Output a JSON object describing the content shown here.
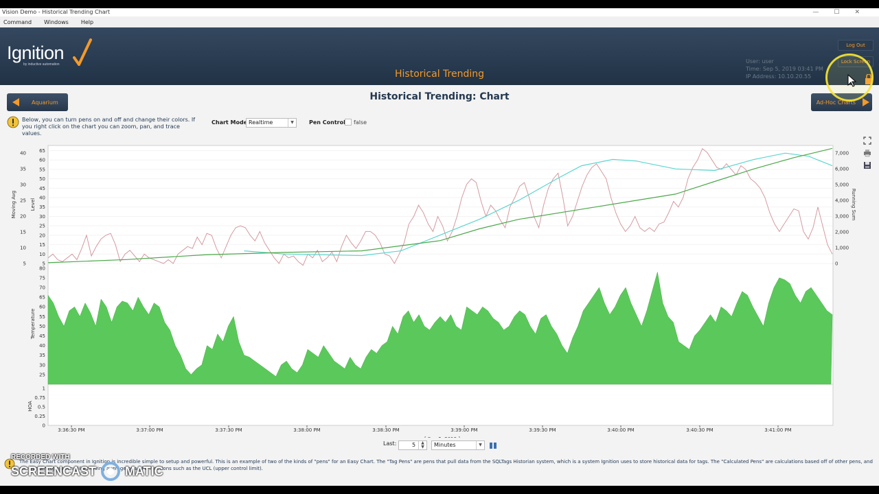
{
  "window": {
    "title": "Vision Demo - Historical Trending Chart",
    "min": "—",
    "max": "☐",
    "close": "✕"
  },
  "menu": [
    "Command",
    "Windows",
    "Help"
  ],
  "header": {
    "logo_text": "Ignition",
    "logo_sub": "by inductive automation",
    "title": "Historical Trending",
    "user_line": "User:  user",
    "time_line": "Time:  Sep 5, 2019 03:41 PM",
    "ip_line": "IP Address:  10.10.20.55",
    "logout": "Log Out",
    "lock": "Lock Screen"
  },
  "page": {
    "title": "Historical Trending: Chart",
    "prev_button": "Aquarium",
    "next_button": "Ad-Hoc Charts",
    "info_text": "Below, you can turn pens on and off and change their colors. If you right click on the chart you can zoom, pan, and trace values.",
    "chart_mode_label": "Chart Mode:",
    "chart_mode_value": "Realtime",
    "pen_control_label": "Pen Control:",
    "pen_control_value": "false"
  },
  "chart_data": {
    "type": "line",
    "subplots": [
      {
        "left_axes": [
          {
            "label": "Moving Avg",
            "ticks": [
              5,
              10,
              15,
              20,
              25,
              30,
              35,
              40
            ]
          },
          {
            "label": "Level",
            "ticks": [
              5,
              10,
              15,
              20,
              25,
              30,
              35,
              40,
              45,
              50,
              55,
              60,
              65
            ]
          }
        ],
        "right_axis": {
          "label": "Running Sum",
          "ticks": [
            "0",
            "1,000",
            "2,000",
            "3,000",
            "4,000",
            "5,000",
            "6,000",
            "7,000"
          ]
        },
        "colors": {
          "level": "#d49aa0",
          "moving_avg": "#5ad6d0",
          "running_sum": "#4aa84a"
        },
        "level": [
          8,
          10,
          7,
          6,
          8,
          10,
          7,
          13,
          20,
          9,
          14,
          18,
          20,
          21,
          15,
          6,
          10,
          12,
          9,
          6,
          10,
          8,
          7,
          6,
          5,
          7,
          5,
          10,
          12,
          14,
          13,
          19,
          15,
          21,
          20,
          13,
          8,
          14,
          20,
          24,
          25,
          24,
          20,
          17,
          22,
          16,
          12,
          8,
          5,
          10,
          8,
          9,
          6,
          4,
          10,
          8,
          12,
          6,
          8,
          11,
          6,
          14,
          20,
          16,
          13,
          17,
          22,
          22,
          20,
          16,
          10,
          9,
          5,
          10,
          16,
          26,
          30,
          36,
          32,
          26,
          22,
          30,
          25,
          17,
          22,
          30,
          40,
          47,
          50,
          48,
          38,
          30,
          36,
          33,
          28,
          24,
          35,
          40,
          46,
          48,
          40,
          30,
          24,
          36,
          45,
          50,
          53,
          40,
          25,
          30,
          38,
          46,
          52,
          56,
          58,
          54,
          50,
          40,
          32,
          26,
          22,
          25,
          30,
          24,
          22,
          24,
          22,
          26,
          27,
          32,
          38,
          35,
          40,
          50,
          56,
          60,
          66,
          64,
          60,
          56,
          55,
          58,
          55,
          52,
          57,
          55,
          50,
          48,
          45,
          40,
          32,
          26,
          22,
          26,
          30,
          34,
          33,
          22,
          18,
          24,
          35,
          25,
          15,
          10
        ],
        "moving_avg": [
          [
            0.25,
            9
          ],
          [
            0.3,
            8
          ],
          [
            0.4,
            7.5
          ],
          [
            0.45,
            9
          ],
          [
            0.5,
            14
          ],
          [
            0.55,
            19
          ],
          [
            0.6,
            25
          ],
          [
            0.65,
            32
          ],
          [
            0.68,
            36
          ],
          [
            0.72,
            38
          ],
          [
            0.75,
            37.5
          ],
          [
            0.8,
            35
          ],
          [
            0.85,
            34.5
          ],
          [
            0.9,
            38
          ],
          [
            0.94,
            40
          ],
          [
            0.97,
            39
          ],
          [
            1.0,
            36
          ]
        ],
        "running_sum": [
          [
            0,
            50
          ],
          [
            0.1,
            250
          ],
          [
            0.2,
            550
          ],
          [
            0.3,
            700
          ],
          [
            0.4,
            800
          ],
          [
            0.5,
            1450
          ],
          [
            0.55,
            2200
          ],
          [
            0.6,
            2800
          ],
          [
            0.7,
            3600
          ],
          [
            0.8,
            4400
          ],
          [
            0.85,
            5200
          ],
          [
            0.9,
            6000
          ],
          [
            0.95,
            6700
          ],
          [
            1.0,
            7300
          ]
        ]
      },
      {
        "type": "area",
        "label": "Temperature",
        "ticks": [
          25,
          30,
          35,
          40,
          45,
          50,
          55,
          60,
          65,
          70,
          75,
          80
        ],
        "color": "#5bc85b",
        "values": [
          66,
          62,
          55,
          50,
          58,
          60,
          55,
          62,
          57,
          50,
          64,
          60,
          52,
          60,
          63,
          62,
          58,
          65,
          60,
          56,
          62,
          60,
          52,
          48,
          40,
          35,
          28,
          25,
          28,
          30,
          40,
          38,
          46,
          42,
          50,
          55,
          42,
          35,
          34,
          32,
          30,
          28,
          26,
          24,
          30,
          32,
          28,
          26,
          30,
          38,
          36,
          34,
          40,
          36,
          32,
          30,
          28,
          34,
          30,
          28,
          34,
          38,
          36,
          40,
          42,
          50,
          46,
          55,
          58,
          52,
          56,
          50,
          48,
          52,
          55,
          52,
          56,
          50,
          48,
          60,
          58,
          56,
          60,
          58,
          54,
          52,
          48,
          50,
          55,
          58,
          56,
          50,
          46,
          54,
          56,
          50,
          46,
          40,
          36,
          44,
          50,
          58,
          62,
          66,
          70,
          62,
          56,
          60,
          66,
          70,
          62,
          56,
          50,
          58,
          68,
          78,
          62,
          55,
          52,
          42,
          40,
          38,
          45,
          48,
          52,
          56,
          52,
          60,
          58,
          55,
          62,
          68,
          66,
          60,
          55,
          50,
          62,
          70,
          75,
          74,
          72,
          66,
          62,
          68,
          70,
          66,
          62,
          58,
          56
        ]
      },
      {
        "label": "HOA",
        "ticks": [
          0,
          0.25,
          0.5,
          0.75,
          1
        ]
      }
    ],
    "x_ticks": [
      "3:36:30 PM",
      "3:37:00 PM",
      "3:37:30 PM",
      "3:38:00 PM",
      "3:38:30 PM",
      "3:39:00 PM",
      "3:39:30 PM",
      "3:40:00 PM",
      "3:40:30 PM",
      "3:41:00 PM"
    ],
    "x_date": "[ Sep 5, 2019 ]"
  },
  "range": {
    "label": "Last:",
    "value": "5",
    "unit": "Minutes"
  },
  "footer_text": "The Easy Chart component in Ignition is incredible simple to setup and powerful. This is an example of two of the kinds of \"pens\" for an Easy Chart. The \"Tag Pens\" are pens that pull data from the SQLTags Historian system, which is a system Ignition uses to store historical data for tags. The \"Calculated Pens\" are calculations based off of other pens, and can perform operations like moving average or a SPC functions such as the UCL (upper control limit).",
  "watermark": {
    "line1": "RECORDED WITH",
    "line2": "SCREENCAST",
    "line3": "MATIC"
  }
}
